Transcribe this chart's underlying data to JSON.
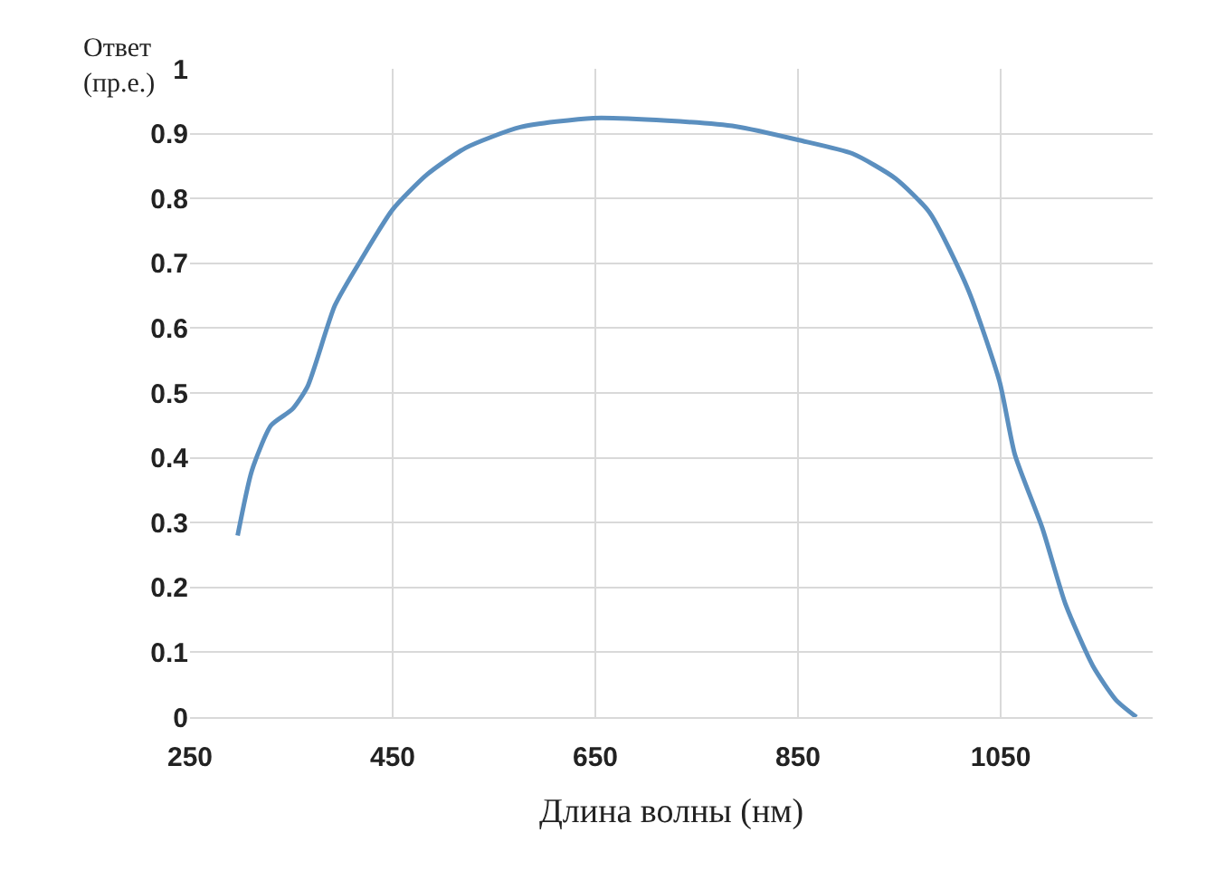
{
  "chart_data": {
    "type": "line",
    "xlabel": "Длина волны (нм)",
    "ylabel": "Ответ\n(пр.е.)",
    "series": [
      {
        "color": "#5b8fbf",
        "x": [
          297,
          311,
          330,
          351,
          366,
          393,
          419,
          450,
          484,
          522,
          576,
          648,
          721,
          789,
          851,
          904,
          946,
          980,
          1018,
          1049,
          1064,
          1091,
          1114,
          1141,
          1164,
          1184
        ],
        "values": [
          0.28,
          0.38,
          0.45,
          0.475,
          0.51,
          0.635,
          0.706,
          0.783,
          0.837,
          0.878,
          0.91,
          0.924,
          0.92,
          0.911,
          0.89,
          0.869,
          0.831,
          0.778,
          0.659,
          0.517,
          0.405,
          0.292,
          0.174,
          0.079,
          0.026,
          0
        ]
      }
    ],
    "xlim": [
      250,
      1200
    ],
    "xticks": [
      250,
      450,
      650,
      850,
      1050
    ],
    "ylim": [
      0,
      1
    ],
    "yticks": [
      0,
      0.1,
      0.2,
      0.3,
      0.4,
      0.5,
      0.6,
      0.7,
      0.8,
      0.9,
      1
    ],
    "grid": true,
    "marker": "none",
    "line_style": "solid"
  }
}
